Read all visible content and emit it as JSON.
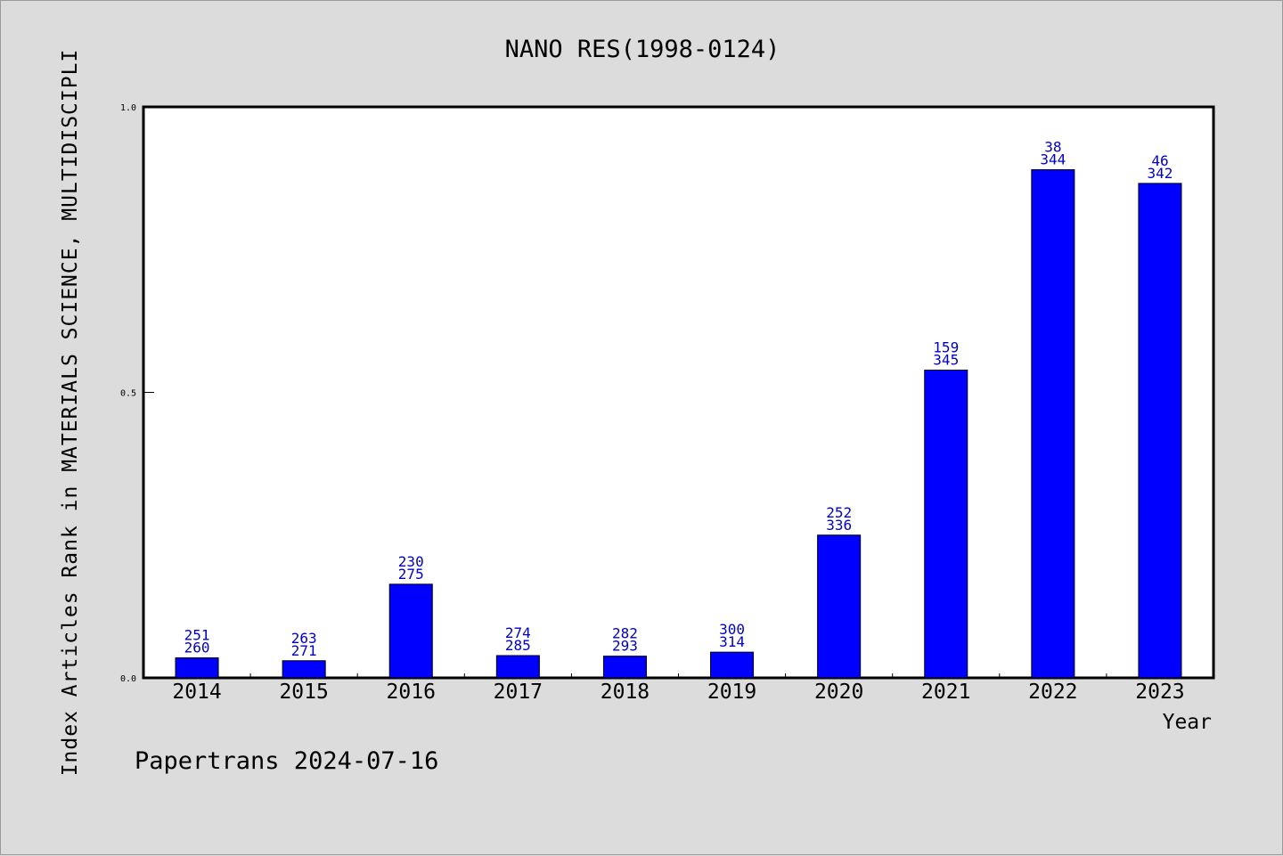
{
  "chart_data": {
    "type": "bar",
    "title": "NANO RES(1998-0124)",
    "xlabel": "Year",
    "ylabel": "Index Articles Rank in MATERIALS SCIENCE, MULTIDISCIPLI",
    "categories": [
      "2014",
      "2015",
      "2016",
      "2017",
      "2018",
      "2019",
      "2020",
      "2021",
      "2022",
      "2023"
    ],
    "values": [
      0.035,
      0.03,
      0.164,
      0.039,
      0.038,
      0.045,
      0.25,
      0.539,
      0.89,
      0.866
    ],
    "rank": [
      "251",
      "263",
      "230",
      "274",
      "282",
      "300",
      "252",
      "159",
      "38",
      "46"
    ],
    "total": [
      "260",
      "271",
      "275",
      "285",
      "293",
      "314",
      "336",
      "345",
      "344",
      "342"
    ],
    "ylim": [
      0,
      1.0
    ],
    "yticks": [
      "0.0",
      "0.5",
      "1.0"
    ],
    "bar_color": "#0000ff",
    "label_color": "#0000cc",
    "grid": false
  },
  "footer": "Papertrans 2024-07-16"
}
